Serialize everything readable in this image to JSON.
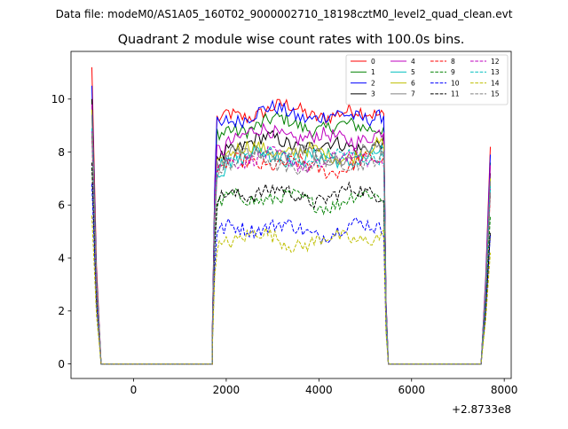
{
  "figure": {
    "suptitle": "Data file: modeM0/AS1A05_160T02_9000002710_18198cztM0_level2_quad_clean.evt"
  },
  "chart_data": {
    "type": "line",
    "title": "Quadrant 2 module wise count rates with 100.0s bins.",
    "xlabel": "",
    "ylabel": "",
    "x_offset_label": "+2.8733e8",
    "xlim": [
      -1350,
      8150
    ],
    "ylim": [
      -0.55,
      11.8
    ],
    "xticks": [
      0,
      2000,
      4000,
      6000,
      8000
    ],
    "yticks": [
      0,
      2,
      4,
      6,
      8,
      10
    ],
    "grid": false,
    "legend": {
      "placement": "top-right",
      "ncol": 4
    },
    "segments": [
      {
        "x": [
          -900,
          -800,
          -700
        ],
        "descent": true
      },
      {
        "x": [
          -700,
          1700
        ],
        "flat_zero": true
      },
      {
        "x_start": 1700,
        "x_end": 5400,
        "step": 50
      },
      {
        "x": [
          5400,
          5500
        ],
        "descent": true
      },
      {
        "x": [
          5500,
          7500
        ],
        "flat_zero": true
      },
      {
        "x": [
          7500,
          7700
        ],
        "rise": true
      }
    ],
    "series": [
      {
        "name": "0",
        "color": "#ff0000",
        "dash": "solid",
        "level": 9.5,
        "start": 11.2,
        "end": 8.2
      },
      {
        "name": "1",
        "color": "#008000",
        "dash": "solid",
        "level": 9.0,
        "start": 10.0,
        "end": 7.6
      },
      {
        "name": "2",
        "color": "#0000ff",
        "dash": "solid",
        "level": 9.4,
        "start": 10.5,
        "end": 7.9
      },
      {
        "name": "3",
        "color": "#000000",
        "dash": "solid",
        "level": 8.3,
        "start": 10.0,
        "end": 7.2
      },
      {
        "name": "4",
        "color": "#bf00bf",
        "dash": "solid",
        "level": 8.6,
        "start": 9.8,
        "end": 7.5
      },
      {
        "name": "5",
        "color": "#00bfbf",
        "dash": "solid",
        "level": 7.8,
        "start": 9.5,
        "end": 6.8
      },
      {
        "name": "6",
        "color": "#bfbf00",
        "dash": "solid",
        "level": 8.0,
        "start": 9.6,
        "end": 7.0
      },
      {
        "name": "7",
        "color": "#808080",
        "dash": "solid",
        "level": 7.9,
        "start": 9.4,
        "end": 6.9
      },
      {
        "name": "8",
        "color": "#ff0000",
        "dash": "dashed",
        "level": 7.5,
        "start": 8.6,
        "end": 6.4
      },
      {
        "name": "9",
        "color": "#008000",
        "dash": "dashed",
        "level": 6.2,
        "start": 7.4,
        "end": 5.6
      },
      {
        "name": "10",
        "color": "#0000ff",
        "dash": "dashed",
        "level": 5.1,
        "start": 6.8,
        "end": 4.9
      },
      {
        "name": "11",
        "color": "#000000",
        "dash": "dashed",
        "level": 6.4,
        "start": 7.6,
        "end": 5.0
      },
      {
        "name": "12",
        "color": "#bf00bf",
        "dash": "dashed",
        "level": 7.7,
        "start": 8.8,
        "end": 6.6
      },
      {
        "name": "13",
        "color": "#00bfbf",
        "dash": "dashed",
        "level": 7.8,
        "start": 8.9,
        "end": 6.7
      },
      {
        "name": "14",
        "color": "#bfbf00",
        "dash": "dashed",
        "level": 4.7,
        "start": 5.6,
        "end": 4.2
      },
      {
        "name": "15",
        "color": "#808080",
        "dash": "dashed",
        "level": 7.6,
        "start": 8.7,
        "end": 6.5
      }
    ]
  }
}
